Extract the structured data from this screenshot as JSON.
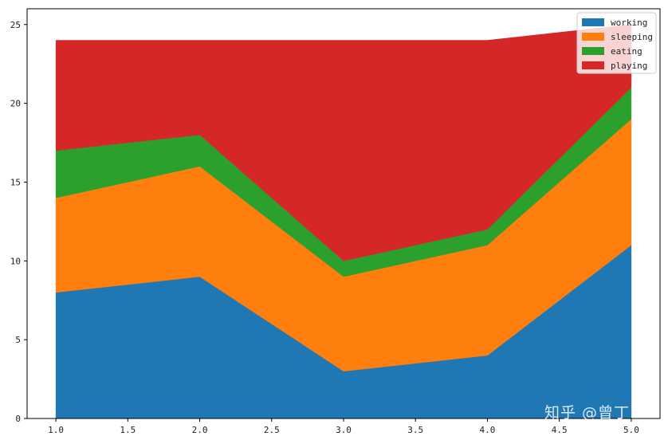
{
  "chart_data": {
    "type": "area",
    "stacked": true,
    "x": [
      1,
      2,
      3,
      4,
      5
    ],
    "xlim": [
      0.8,
      5.2
    ],
    "ylim": [
      0,
      26
    ],
    "xticks": [
      "1.0",
      "1.5",
      "2.0",
      "2.5",
      "3.0",
      "3.5",
      "4.0",
      "4.5",
      "5.0"
    ],
    "xtick_values": [
      1.0,
      1.5,
      2.0,
      2.5,
      3.0,
      3.5,
      4.0,
      4.5,
      5.0
    ],
    "yticks": [
      "0",
      "5",
      "10",
      "15",
      "20",
      "25"
    ],
    "ytick_values": [
      0,
      5,
      10,
      15,
      20,
      25
    ],
    "grid": false,
    "legend_position": "top-right",
    "series": [
      {
        "name": "working",
        "values": [
          8,
          9,
          3,
          4,
          11
        ],
        "color": "#1f77b4"
      },
      {
        "name": "sleeping",
        "values": [
          6,
          7,
          6,
          7,
          8
        ],
        "color": "#ff7f0e"
      },
      {
        "name": "eating",
        "values": [
          3,
          2,
          1,
          1,
          2
        ],
        "color": "#2ca02c"
      },
      {
        "name": "playing",
        "values": [
          7,
          6,
          14,
          12,
          4
        ],
        "color": "#d62728"
      }
    ]
  },
  "watermark": "知乎 @曾丁"
}
